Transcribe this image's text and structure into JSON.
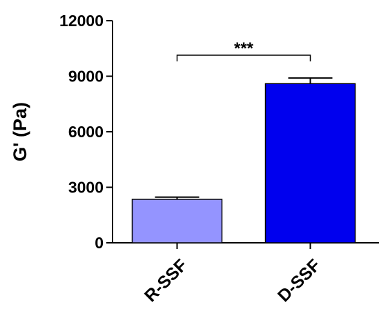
{
  "chart_data": {
    "type": "bar",
    "title": "",
    "xlabel": "",
    "ylabel": "G' (Pa)",
    "ylim": [
      0,
      12000
    ],
    "yticks": [
      0,
      3000,
      6000,
      9000,
      12000
    ],
    "yticklabels": [
      "0",
      "3000",
      "6000",
      "9000",
      "12000"
    ],
    "categories": [
      "R-SSF",
      "D-SSF"
    ],
    "values": [
      2350,
      8600
    ],
    "errors": [
      120,
      300
    ],
    "colors": [
      "#9494ff",
      "#0000ee"
    ],
    "significance": {
      "between": [
        "R-SSF",
        "D-SSF"
      ],
      "label": "***"
    },
    "grid": false
  }
}
